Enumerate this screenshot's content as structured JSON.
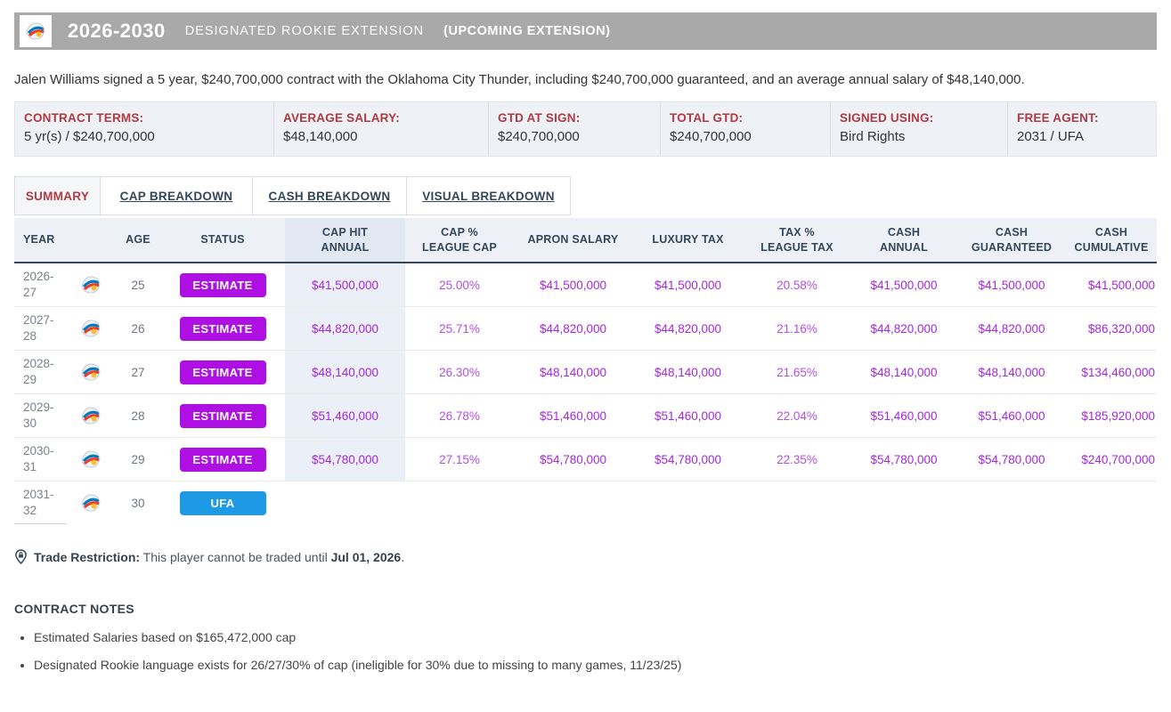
{
  "header": {
    "years": "2026-2030",
    "type": "DESIGNATED ROOKIE EXTENSION",
    "status": "(UPCOMING EXTENSION)",
    "team_logo": "oklahoma-city-thunder-logo"
  },
  "summary_sentence": "Jalen Williams signed a 5 year, $240,700,000 contract with the Oklahoma City Thunder, including $240,700,000 guaranteed, and an average annual salary of $48,140,000.",
  "terms": [
    {
      "label": "CONTRACT TERMS:",
      "value": "5 yr(s) / $240,700,000"
    },
    {
      "label": "AVERAGE SALARY:",
      "value": "$48,140,000"
    },
    {
      "label": "GTD AT SIGN:",
      "value": "$240,700,000"
    },
    {
      "label": "TOTAL GTD:",
      "value": "$240,700,000"
    },
    {
      "label": "SIGNED USING:",
      "value": "Bird Rights"
    },
    {
      "label": "FREE AGENT:",
      "value": "2031 / UFA"
    }
  ],
  "tabs": [
    {
      "label": "SUMMARY",
      "active": true
    },
    {
      "label": "CAP BREAKDOWN",
      "active": false
    },
    {
      "label": "CASH BREAKDOWN",
      "active": false
    },
    {
      "label": "VISUAL BREAKDOWN",
      "active": false
    }
  ],
  "table": {
    "columns": [
      {
        "key": "year",
        "line1": "YEAR",
        "line2": "",
        "left": true
      },
      {
        "key": "logo",
        "line1": "",
        "line2": ""
      },
      {
        "key": "age",
        "line1": "AGE",
        "line2": ""
      },
      {
        "key": "status",
        "line1": "STATUS",
        "line2": ""
      },
      {
        "key": "cap_hit",
        "line1": "CAP HIT",
        "line2": "ANNUAL",
        "highlight": true
      },
      {
        "key": "cap_pct",
        "line1": "CAP %",
        "line2": "LEAGUE CAP"
      },
      {
        "key": "apron_salary",
        "line1": "APRON SALARY",
        "line2": ""
      },
      {
        "key": "luxury_tax",
        "line1": "LUXURY TAX",
        "line2": ""
      },
      {
        "key": "tax_pct",
        "line1": "TAX %",
        "line2": "LEAGUE TAX"
      },
      {
        "key": "cash_annual",
        "line1": "CASH",
        "line2": "ANNUAL"
      },
      {
        "key": "cash_guaranteed",
        "line1": "CASH",
        "line2": "GUARANTEED"
      },
      {
        "key": "cash_cumulative",
        "line1": "CASH",
        "line2": "CUMULATIVE"
      }
    ],
    "rows": [
      {
        "year": "2026-27",
        "age": "25",
        "status": "ESTIMATE",
        "status_type": "estimate",
        "cap_hit": "$41,500,000",
        "cap_pct": "25.00%",
        "apron_salary": "$41,500,000",
        "luxury_tax": "$41,500,000",
        "tax_pct": "20.58%",
        "cash_annual": "$41,500,000",
        "cash_guaranteed": "$41,500,000",
        "cash_cumulative": "$41,500,000"
      },
      {
        "year": "2027-28",
        "age": "26",
        "status": "ESTIMATE",
        "status_type": "estimate",
        "cap_hit": "$44,820,000",
        "cap_pct": "25.71%",
        "apron_salary": "$44,820,000",
        "luxury_tax": "$44,820,000",
        "tax_pct": "21.16%",
        "cash_annual": "$44,820,000",
        "cash_guaranteed": "$44,820,000",
        "cash_cumulative": "$86,320,000"
      },
      {
        "year": "2028-29",
        "age": "27",
        "status": "ESTIMATE",
        "status_type": "estimate",
        "cap_hit": "$48,140,000",
        "cap_pct": "26.30%",
        "apron_salary": "$48,140,000",
        "luxury_tax": "$48,140,000",
        "tax_pct": "21.65%",
        "cash_annual": "$48,140,000",
        "cash_guaranteed": "$48,140,000",
        "cash_cumulative": "$134,460,000"
      },
      {
        "year": "2029-30",
        "age": "28",
        "status": "ESTIMATE",
        "status_type": "estimate",
        "cap_hit": "$51,460,000",
        "cap_pct": "26.78%",
        "apron_salary": "$51,460,000",
        "luxury_tax": "$51,460,000",
        "tax_pct": "22.04%",
        "cash_annual": "$51,460,000",
        "cash_guaranteed": "$51,460,000",
        "cash_cumulative": "$185,920,000"
      },
      {
        "year": "2030-31",
        "age": "29",
        "status": "ESTIMATE",
        "status_type": "estimate",
        "cap_hit": "$54,780,000",
        "cap_pct": "27.15%",
        "apron_salary": "$54,780,000",
        "luxury_tax": "$54,780,000",
        "tax_pct": "22.35%",
        "cash_annual": "$54,780,000",
        "cash_guaranteed": "$54,780,000",
        "cash_cumulative": "$240,700,000"
      },
      {
        "year": "2031-32",
        "age": "30",
        "status": "UFA",
        "status_type": "ufa",
        "cap_hit": "",
        "cap_pct": "",
        "apron_salary": "",
        "luxury_tax": "",
        "tax_pct": "",
        "cash_annual": "",
        "cash_guaranteed": "",
        "cash_cumulative": ""
      }
    ]
  },
  "trade_restriction": {
    "label": "Trade Restriction:",
    "text_before": "This player cannot be traded until",
    "date": "Jul 01, 2026",
    "period": "."
  },
  "notes": {
    "title": "CONTRACT NOTES",
    "items": [
      "Estimated Salaries based on $165,472,000 cap",
      "Designated Rookie language exists for 26/27/30% of cap (ineligible for 30% due to missing to many games, 11/23/25)"
    ]
  },
  "colors": {
    "title_bar_bg": "#a9a9a9",
    "label_red": "#b13a43",
    "estimate_badge": "#ae10e3",
    "ufa_badge": "#1e9ae5",
    "money_purple": "#a526dd",
    "header_navy": "#33475b"
  }
}
